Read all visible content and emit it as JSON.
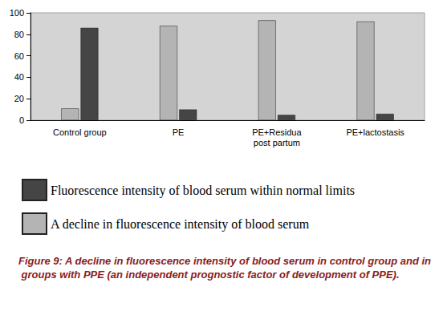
{
  "chart_data": {
    "type": "bar",
    "title": "Figure 9: A decline in fluorescence intensity of blood serum in control group and in groups with PPE (an independent prognostic factor of development of PPE).",
    "categories": [
      "Control group",
      "PE",
      "PE+Residua\npost partum",
      "PE+lactostasis"
    ],
    "series": [
      {
        "name": "A decline in fluorescence intensity of blood serum",
        "color": "#b4b4b4",
        "values": [
          11,
          88,
          93,
          92
        ]
      },
      {
        "name": "Fluorescence intensity of blood serum within normal limits",
        "color": "#454545",
        "values": [
          86,
          10,
          5,
          6
        ]
      }
    ],
    "ylim": [
      0,
      100
    ],
    "yticks": [
      0,
      20,
      40,
      60,
      80,
      100
    ],
    "grid": false,
    "legend": "bottom-left"
  }
}
